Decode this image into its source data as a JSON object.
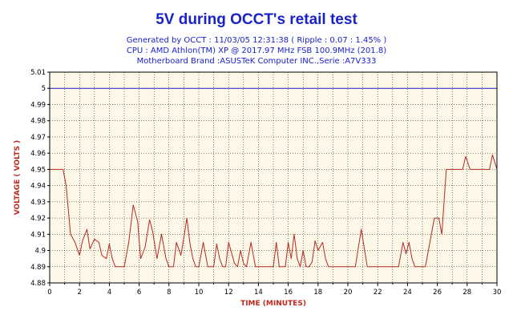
{
  "colors": {
    "title": "#1a22c8",
    "plot_bg": "#fcf7e6",
    "grid": "#000000",
    "series": "#b42a22",
    "reference": "#1a22c8",
    "axis_label": "#c0281e"
  },
  "header": {
    "title": "5V during OCCT's retail test",
    "line1": "Generated by OCCT : 11/03/05 12:31:38 ( Ripple : 0.07 : 1.45% )",
    "line2": "CPU : AMD Athlon(TM) XP @ 2017.97 MHz FSB 100.9MHz (201.8)",
    "line3": "Motherboard Brand :ASUSTeK Computer INC.,Serie :A7V333"
  },
  "chart_data": {
    "type": "line",
    "xlabel": "TIME (MINUTES)",
    "ylabel": "VOLTAGE ( VOLTS )",
    "xlim": [
      0,
      30
    ],
    "ylim": [
      4.88,
      5.01
    ],
    "grid": true,
    "x_ticks": [
      0,
      2,
      4,
      6,
      8,
      10,
      12,
      14,
      16,
      18,
      20,
      22,
      24,
      26,
      28,
      30
    ],
    "y_ticks": [
      4.88,
      4.89,
      4.9,
      4.91,
      4.92,
      4.93,
      4.94,
      4.95,
      4.96,
      4.97,
      4.98,
      4.99,
      5,
      5.01
    ],
    "reference_line": 5.0,
    "series": [
      {
        "x": [
          0,
          0.9,
          1.1,
          1.4,
          1.7,
          2.0,
          2.2,
          2.5,
          2.7,
          3.0,
          3.3,
          3.5,
          3.8,
          4.0,
          4.2,
          4.4,
          4.6,
          5.0,
          5.3,
          5.6,
          5.9,
          6.1,
          6.4,
          6.7,
          6.9,
          7.2,
          7.5,
          7.8,
          8.0,
          8.3,
          8.5,
          8.8,
          9.0,
          9.2,
          9.4,
          9.6,
          9.8,
          10.0,
          10.3,
          10.6,
          10.8,
          11.0,
          11.2,
          11.4,
          11.6,
          11.8,
          12.0,
          12.4,
          12.6,
          12.8,
          13.0,
          13.2,
          13.5,
          13.8,
          15.0,
          15.2,
          15.4,
          15.6,
          15.8,
          16.0,
          16.2,
          16.4,
          16.6,
          16.8,
          17.0,
          17.2,
          17.4,
          17.6,
          17.8,
          18.0,
          18.3,
          18.5,
          18.7,
          18.9,
          19.1,
          20.5,
          20.9,
          21.3,
          23.4,
          23.7,
          23.9,
          24.1,
          24.3,
          24.5,
          24.7,
          25.2,
          25.5,
          25.8,
          26.1,
          26.3,
          26.6,
          26.8,
          27.3,
          27.7,
          27.9,
          28.2,
          28.6,
          29.2,
          29.5,
          29.7,
          30
        ],
        "y": [
          4.95,
          4.95,
          4.94,
          4.91,
          4.905,
          4.897,
          4.906,
          4.913,
          4.901,
          4.907,
          4.905,
          4.897,
          4.895,
          4.904,
          4.895,
          4.89,
          4.89,
          4.89,
          4.905,
          4.928,
          4.918,
          4.895,
          4.902,
          4.919,
          4.912,
          4.895,
          4.91,
          4.895,
          4.89,
          4.89,
          4.905,
          4.897,
          4.908,
          4.92,
          4.905,
          4.895,
          4.89,
          4.89,
          4.905,
          4.89,
          4.89,
          4.89,
          4.904,
          4.895,
          4.89,
          4.89,
          4.905,
          4.892,
          4.89,
          4.9,
          4.892,
          4.89,
          4.905,
          4.89,
          4.89,
          4.905,
          4.89,
          4.89,
          4.89,
          4.905,
          4.895,
          4.91,
          4.895,
          4.89,
          4.9,
          4.89,
          4.89,
          4.893,
          4.906,
          4.9,
          4.905,
          4.895,
          4.89,
          4.89,
          4.89,
          4.89,
          4.913,
          4.89,
          4.89,
          4.905,
          4.898,
          4.905,
          4.895,
          4.89,
          4.89,
          4.89,
          4.905,
          4.92,
          4.92,
          4.91,
          4.95,
          4.95,
          4.95,
          4.95,
          4.958,
          4.95,
          4.95,
          4.95,
          4.95,
          4.959,
          4.95
        ]
      }
    ]
  }
}
